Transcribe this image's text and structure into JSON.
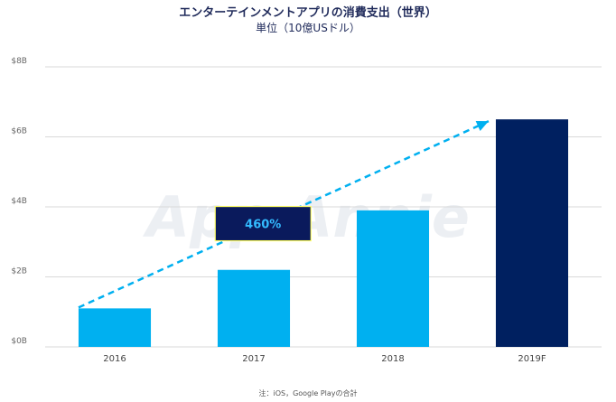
{
  "chart_data": {
    "type": "bar",
    "title": "エンターテインメントアプリの消費支出（世界）",
    "subtitle": "単位（10億USドル）",
    "categories": [
      "2016",
      "2017",
      "2018",
      "2019F"
    ],
    "values": [
      1.1,
      2.2,
      3.9,
      6.5
    ],
    "ylim": [
      0,
      8
    ],
    "yticks": [
      0,
      2,
      4,
      6,
      8
    ],
    "ytick_labels": [
      "$0B",
      "$2B",
      "$4B",
      "$6B",
      "$8B"
    ],
    "xlabel": "",
    "ylabel": "",
    "grid": true,
    "bar_colors": [
      "#00b0f0",
      "#00b0f0",
      "#00b0f0",
      "#002060"
    ],
    "annotation": {
      "text": "460%",
      "from_category": "2016",
      "to_category": "2019F",
      "arrow_color": "#00b0f0",
      "box_fill": "#0a1a5c",
      "box_border": "#ffff66",
      "text_color": "#33bbff"
    },
    "watermark": "App Annie",
    "footnote": "注：iOS，Google Playの合計"
  }
}
